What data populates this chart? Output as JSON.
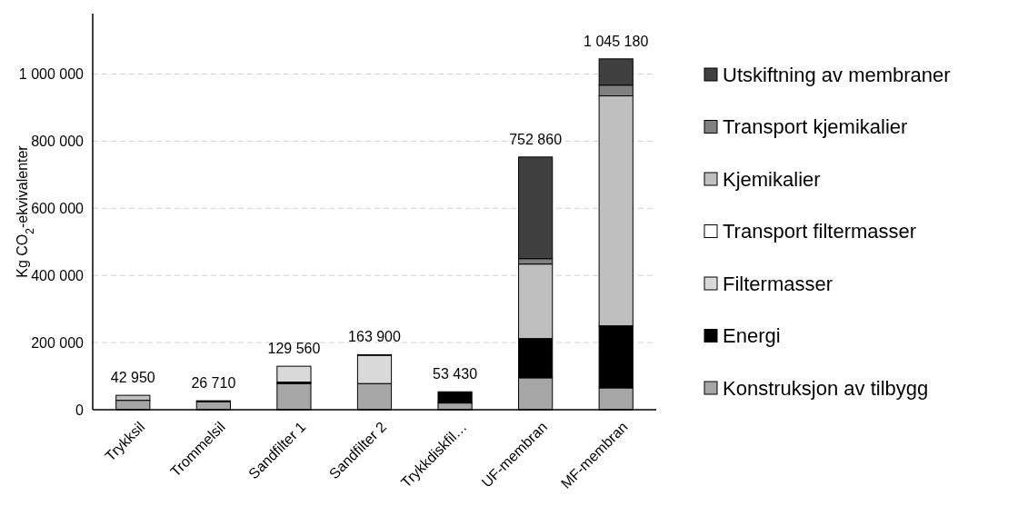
{
  "chart_data": {
    "type": "bar",
    "stacked": true,
    "ylabel": "Kg CO$_{2}$-ekvivalenter",
    "categories": [
      "Trykksil",
      "Trommelsil",
      "Sandfilter 1",
      "Sandfilter 2",
      "Trykkdiskfil…",
      "UF-membran",
      "MF-membran"
    ],
    "series": [
      {
        "name": "Konstruksjon av tilbygg",
        "color": "#a6a6a6",
        "values": [
          28000,
          24000,
          78000,
          78000,
          20000,
          95000,
          65000
        ]
      },
      {
        "name": "Energi",
        "color": "#000000",
        "values": [
          null,
          2710,
          4560,
          null,
          33430,
          117000,
          185000
        ]
      },
      {
        "name": "Filtermasser",
        "color": "#d9d9d9",
        "values": [
          null,
          null,
          47000,
          84000,
          null,
          null,
          null
        ]
      },
      {
        "name": "Transport filtermasser",
        "color": "#ffffff",
        "values": [
          null,
          null,
          null,
          1900,
          null,
          null,
          null
        ]
      },
      {
        "name": "Kjemikalier",
        "color": "#bfbfbf",
        "values": [
          14950,
          null,
          null,
          null,
          null,
          222000,
          685000
        ]
      },
      {
        "name": "Transport kjemikalier",
        "color": "#808080",
        "values": [
          null,
          null,
          null,
          null,
          null,
          16000,
          32000
        ]
      },
      {
        "name": "Utskiftning av membraner",
        "color": "#404040",
        "values": [
          null,
          null,
          null,
          null,
          null,
          302860,
          78180
        ]
      }
    ],
    "totals": [
      "42 950",
      "26 710",
      "129 560",
      "163 900",
      "53 430",
      "752 860",
      "1 045 180"
    ],
    "ylim": [
      0,
      1180000
    ],
    "yticks": [
      0,
      {
        "value": 200000,
        "label": "200 000"
      },
      {
        "value": 400000,
        "label": "400 000"
      },
      {
        "value": 600000,
        "label": "600 000"
      },
      {
        "value": 800000,
        "label": "800 000"
      },
      {
        "value": 1000000,
        "label": "1 000 000"
      }
    ],
    "grid": "y",
    "legend": "right"
  }
}
